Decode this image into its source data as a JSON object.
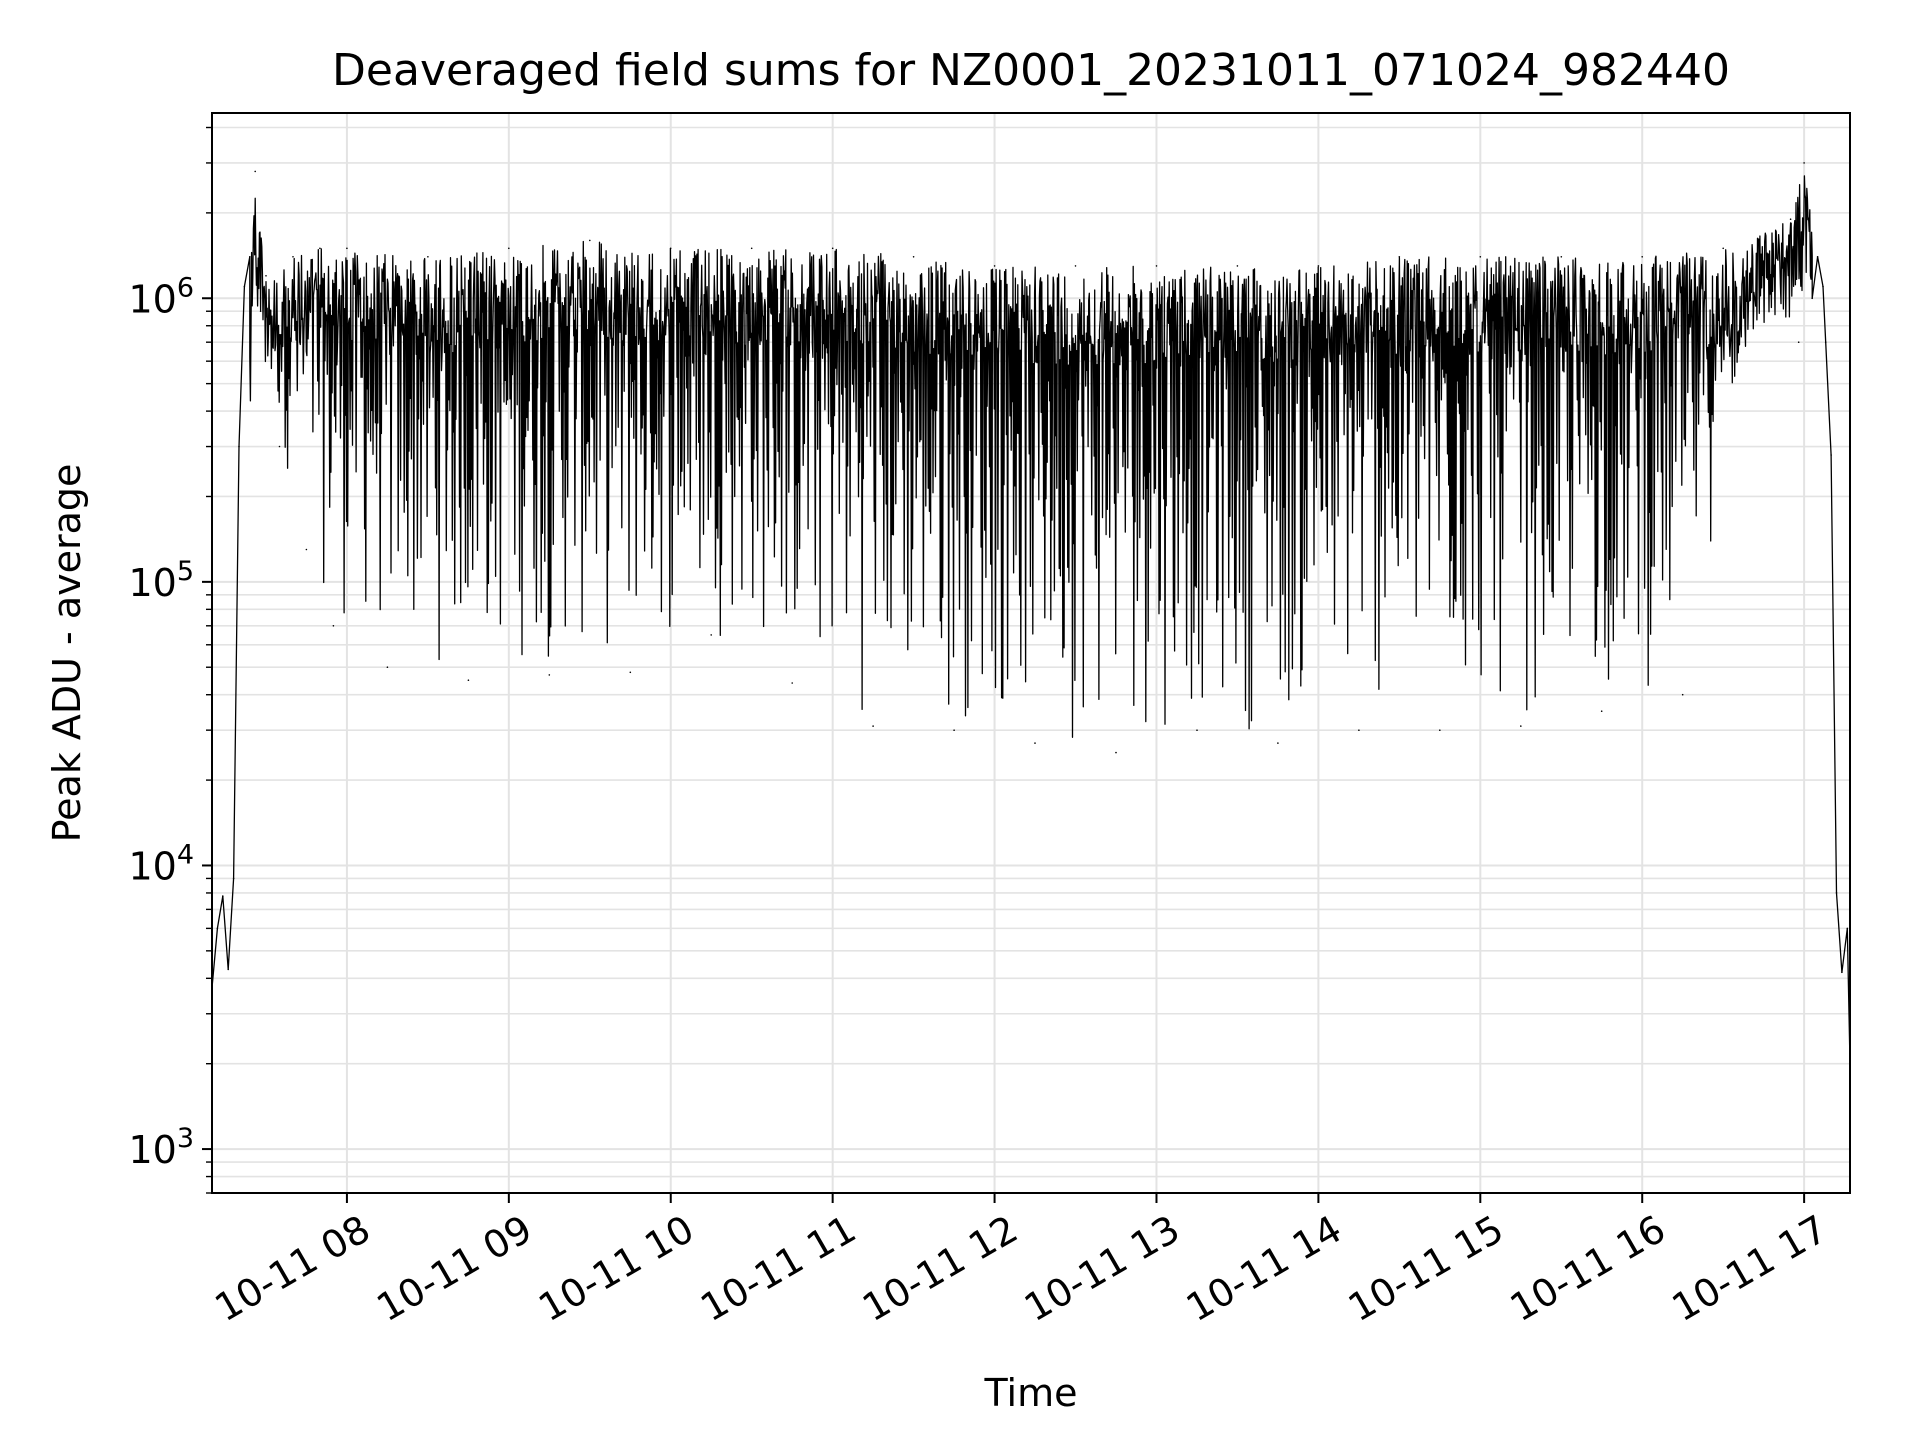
{
  "chart_data": {
    "type": "line",
    "title": "Deaveraged field sums for NZ0001_20231011_071024_982440",
    "xlabel": "Time",
    "ylabel": "Peak ADU - average",
    "y_scale": "log",
    "ylim": [
      700,
      4500000
    ],
    "xlim": [
      "2023-10-11 07:10",
      "2023-10-11 17:17"
    ],
    "grid": true,
    "legend": "none",
    "line_color": "#000000",
    "x_tick_labels": [
      "10-11 08",
      "10-11 09",
      "10-11 10",
      "10-11 11",
      "10-11 12",
      "10-11 13",
      "10-11 14",
      "10-11 15",
      "10-11 16",
      "10-11 17"
    ],
    "x_tick_times": [
      "2023-10-11 08:00",
      "2023-10-11 09:00",
      "2023-10-11 10:00",
      "2023-10-11 11:00",
      "2023-10-11 12:00",
      "2023-10-11 13:00",
      "2023-10-11 14:00",
      "2023-10-11 15:00",
      "2023-10-11 16:00",
      "2023-10-11 17:00"
    ],
    "y_tick_values": [
      1000,
      10000,
      100000,
      1000000
    ],
    "y_tick_labels": [
      {
        "base": "10",
        "exp": "3"
      },
      {
        "base": "10",
        "exp": "4"
      },
      {
        "base": "10",
        "exp": "5"
      },
      {
        "base": "10",
        "exp": "6"
      }
    ],
    "series": [
      {
        "x": [
          "2023-10-11 07:10",
          "2023-10-11 07:12",
          "2023-10-11 07:14",
          "2023-10-11 07:16",
          "2023-10-11 07:18",
          "2023-10-11 07:20",
          "2023-10-11 07:22",
          "2023-10-11 07:24",
          "2023-10-11 07:26",
          "2023-10-11 07:28",
          "2023-10-11 07:30",
          "2023-10-11 07:35",
          "2023-10-11 07:40",
          "2023-10-11 07:45",
          "2023-10-11 07:50",
          "2023-10-11 07:55",
          "2023-10-11 08:00",
          "2023-10-11 08:15",
          "2023-10-11 08:30",
          "2023-10-11 08:45",
          "2023-10-11 09:00",
          "2023-10-11 09:15",
          "2023-10-11 09:30",
          "2023-10-11 09:45",
          "2023-10-11 10:00",
          "2023-10-11 10:15",
          "2023-10-11 10:30",
          "2023-10-11 10:45",
          "2023-10-11 11:00",
          "2023-10-11 11:15",
          "2023-10-11 11:30",
          "2023-10-11 11:45",
          "2023-10-11 12:00",
          "2023-10-11 12:15",
          "2023-10-11 12:30",
          "2023-10-11 12:45",
          "2023-10-11 13:00",
          "2023-10-11 13:15",
          "2023-10-11 13:30",
          "2023-10-11 13:45",
          "2023-10-11 14:00",
          "2023-10-11 14:15",
          "2023-10-11 14:30",
          "2023-10-11 14:45",
          "2023-10-11 15:00",
          "2023-10-11 15:15",
          "2023-10-11 15:30",
          "2023-10-11 15:45",
          "2023-10-11 16:00",
          "2023-10-11 16:15",
          "2023-10-11 16:30",
          "2023-10-11 16:45",
          "2023-10-11 16:55",
          "2023-10-11 16:58",
          "2023-10-11 17:00",
          "2023-10-11 17:03",
          "2023-10-11 17:05",
          "2023-10-11 17:07",
          "2023-10-11 17:08",
          "2023-10-11 17:10",
          "2023-10-11 17:12",
          "2023-10-11 17:14",
          "2023-10-11 17:16",
          "2023-10-11 17:17"
        ],
        "y": [
          3700,
          6000,
          7800,
          4300,
          9000,
          300000,
          1100000,
          1400000,
          2800000,
          900000,
          1200000,
          300000,
          1400000,
          130000,
          1500000,
          70000,
          1500000,
          50000,
          1400000,
          45000,
          1500000,
          47000,
          1600000,
          48000,
          1500000,
          65000,
          1500000,
          44000,
          1500000,
          31000,
          1400000,
          30000,
          1300000,
          27000,
          1300000,
          25000,
          1300000,
          30000,
          1300000,
          27000,
          1300000,
          30000,
          1400000,
          30000,
          1400000,
          31000,
          1400000,
          35000,
          1400000,
          40000,
          1500000,
          1200000,
          1900000,
          700000,
          3000000,
          1000000,
          1400000,
          1100000,
          700000,
          280000,
          8000,
          4200,
          6000,
          2000
        ]
      }
    ]
  }
}
